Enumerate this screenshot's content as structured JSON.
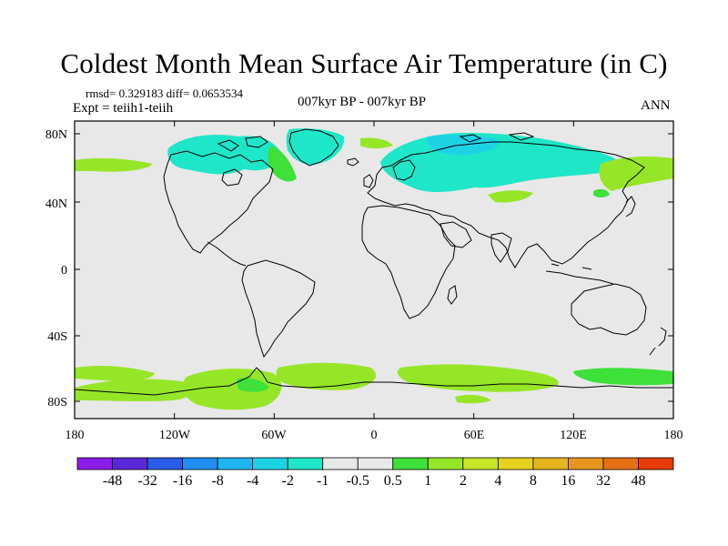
{
  "title": "Coldest Month Mean Surface Air Temperature (in C)",
  "stats_line": "rmsd= 0.329183 diff= 0.0653534",
  "experiment_line": "Expt = teiih1-teiih",
  "subtitle": "007kyr BP - 007kyr BP",
  "period_label": "ANN",
  "map": {
    "x_ticks": [
      "180",
      "120W",
      "60W",
      "0",
      "60E",
      "120E",
      "180"
    ],
    "y_ticks": [
      "80N",
      "40N",
      "0",
      "40S",
      "80S"
    ],
    "background_color": "#e8e8e8"
  },
  "colorbar": {
    "labels": [
      "-48",
      "-32",
      "-16",
      "-8",
      "-4",
      "-2",
      "-1",
      "-0.5",
      "0.5",
      "1",
      "2",
      "4",
      "8",
      "16",
      "32",
      "48"
    ],
    "colors": [
      "#8c1ce8",
      "#5a28d8",
      "#2a5ce8",
      "#1e8ef0",
      "#1eb4f0",
      "#1ed2e6",
      "#1ee6c8",
      "#e8e8e8",
      "#3ee03a",
      "#96e628",
      "#c8e628",
      "#e6d21e",
      "#e6b41e",
      "#e6961e",
      "#e66e14",
      "#e63c0a"
    ]
  }
}
